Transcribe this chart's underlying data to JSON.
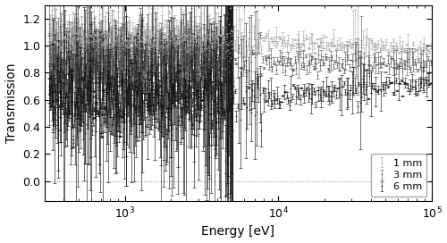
{
  "xlabel": "Energy [eV]",
  "ylabel": "Transmission",
  "xlim": [
    300,
    100000
  ],
  "ylim": [
    -0.15,
    1.3
  ],
  "yticks": [
    0.0,
    0.2,
    0.4,
    0.6,
    0.8,
    1.0,
    1.2
  ],
  "vline_x": 5000,
  "hline_y": 0.0,
  "series": [
    {
      "label": "1 mm",
      "color": "#aaaaaa",
      "mean_low": 1.05,
      "mean_high": 0.97,
      "noise_low": 0.05,
      "noise_high": 0.025,
      "err_low": 0.06,
      "err_high": 0.025
    },
    {
      "label": "3 mm",
      "color": "#555555",
      "mean_low": 0.88,
      "mean_high": 0.87,
      "noise_low": 0.08,
      "noise_high": 0.03,
      "err_low": 0.1,
      "err_high": 0.035
    },
    {
      "label": "6 mm",
      "color": "#111111",
      "mean_low": 0.6,
      "mean_high": 0.72,
      "noise_low": 0.12,
      "noise_high": 0.03,
      "err_low": 0.18,
      "err_high": 0.04
    }
  ],
  "legend_loc": "lower right",
  "legend_fontsize": 8,
  "figsize": [
    5.0,
    2.72
  ],
  "dpi": 100
}
